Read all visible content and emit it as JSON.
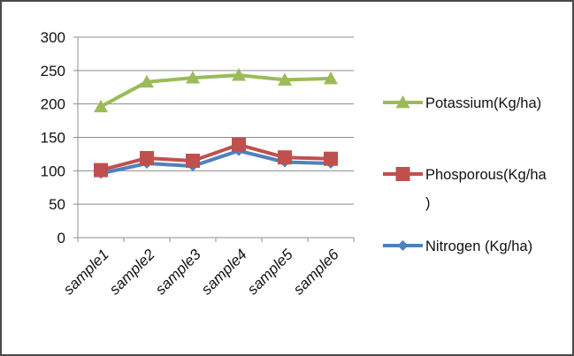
{
  "chart_data": {
    "type": "line",
    "categories": [
      "sample1",
      "sample2",
      "sample3",
      "sample4",
      "sample5",
      "sample6"
    ],
    "series": [
      {
        "name": "Potassium(Kg/ha)",
        "color": "#9bbb59",
        "marker": "triangle",
        "values": [
          196,
          233,
          239,
          243,
          236,
          238
        ]
      },
      {
        "name": "Phosporous(Kg/ha)",
        "color": "#c0504d",
        "marker": "square",
        "values": [
          101,
          119,
          115,
          139,
          120,
          118
        ]
      },
      {
        "name": "Nitrogen (Kg/ha)",
        "color": "#4f81bd",
        "marker": "diamond",
        "values": [
          96,
          111,
          107,
          130,
          113,
          111
        ]
      }
    ],
    "y_ticks": [
      "0",
      "50",
      "100",
      "150",
      "200",
      "250",
      "300"
    ],
    "ylim": [
      0,
      300
    ],
    "grid": true,
    "legend_position": "right",
    "legend_lines": [
      [
        "Potassium(Kg/ha)"
      ],
      [
        "Phosporous(Kg/ha",
        ")"
      ],
      [
        "Nitrogen (Kg/ha)"
      ]
    ]
  }
}
